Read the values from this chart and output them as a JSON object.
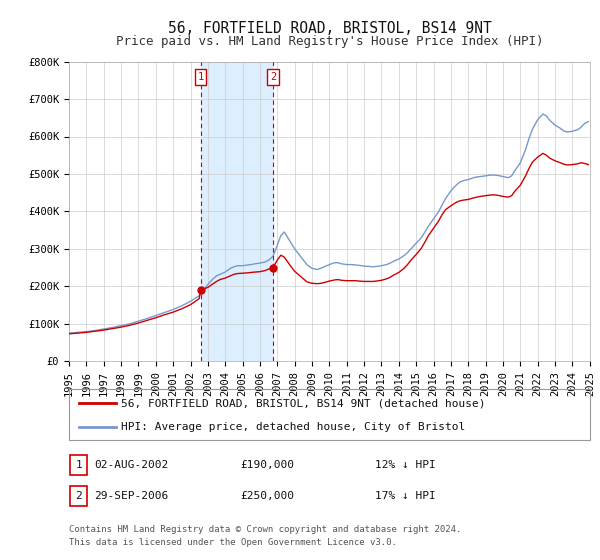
{
  "title": "56, FORTFIELD ROAD, BRISTOL, BS14 9NT",
  "subtitle": "Price paid vs. HM Land Registry's House Price Index (HPI)",
  "xlim": [
    1995,
    2025
  ],
  "ylim": [
    0,
    800000
  ],
  "yticks": [
    0,
    100000,
    200000,
    300000,
    400000,
    500000,
    600000,
    700000,
    800000
  ],
  "ytick_labels": [
    "£0",
    "£100K",
    "£200K",
    "£300K",
    "£400K",
    "£500K",
    "£600K",
    "£700K",
    "£800K"
  ],
  "xticks": [
    1995,
    1996,
    1997,
    1998,
    1999,
    2000,
    2001,
    2002,
    2003,
    2004,
    2005,
    2006,
    2007,
    2008,
    2009,
    2010,
    2011,
    2012,
    2013,
    2014,
    2015,
    2016,
    2017,
    2018,
    2019,
    2020,
    2021,
    2022,
    2023,
    2024,
    2025
  ],
  "hpi_color": "#7799cc",
  "price_color": "#cc0000",
  "bg_shade_color": "#ddeeff",
  "shade_x1": 2002.58,
  "shade_x2": 2006.75,
  "vline1_x": 2002.58,
  "vline2_x": 2006.75,
  "marker1_x": 2002.58,
  "marker1_y": 190000,
  "marker2_x": 2006.75,
  "marker2_y": 250000,
  "legend_label_price": "56, FORTFIELD ROAD, BRISTOL, BS14 9NT (detached house)",
  "legend_label_hpi": "HPI: Average price, detached house, City of Bristol",
  "transaction1_label": "1",
  "transaction1_date": "02-AUG-2002",
  "transaction1_price": "£190,000",
  "transaction1_note": "12% ↓ HPI",
  "transaction2_label": "2",
  "transaction2_date": "29-SEP-2006",
  "transaction2_price": "£250,000",
  "transaction2_note": "17% ↓ HPI",
  "footer_text": "Contains HM Land Registry data © Crown copyright and database right 2024.\nThis data is licensed under the Open Government Licence v3.0.",
  "title_fontsize": 10.5,
  "subtitle_fontsize": 9,
  "tick_fontsize": 7.5,
  "legend_fontsize": 8,
  "table_fontsize": 8,
  "footer_fontsize": 6.5,
  "grid_color": "#cccccc",
  "spine_color": "#aaaaaa"
}
